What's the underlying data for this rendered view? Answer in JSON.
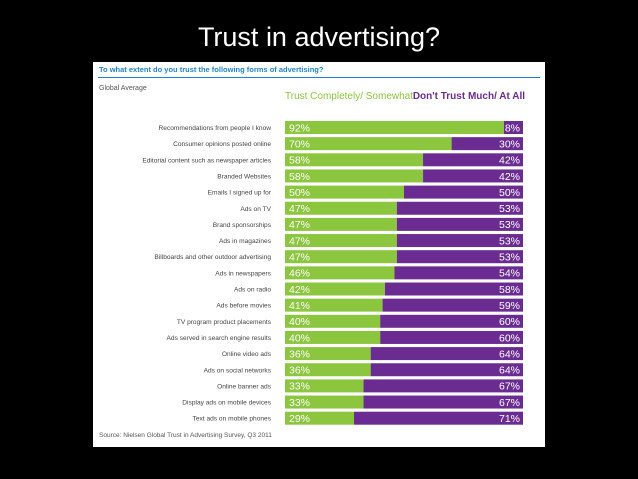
{
  "slide_title": "Trust in advertising?",
  "chart_data": {
    "type": "bar",
    "stacked": true,
    "orientation": "horizontal",
    "title": "To what extent do you trust the following forms of advertising?",
    "subtitle": "Global Average",
    "source": "Source: Nielsen Global Trust in Advertising Survey, Q3 2011",
    "categories": [
      "Recommendations from people I know",
      "Consumer opinions posted online",
      "Editorial content such as newspaper articles",
      "Branded Websites",
      "Emails I signed up for",
      "Ads on TV",
      "Brand sponsorships",
      "Ads in magazines",
      "Billboards and other outdoor advertising",
      "Ads in newspapers",
      "Ads on radio",
      "Ads before movies",
      "TV program product placements",
      "Ads served in search engine results",
      "Online video ads",
      "Ads on social networks",
      "Online banner ads",
      "Display ads on mobile devices",
      "Text ads on mobile phones"
    ],
    "series": [
      {
        "name": "Trust Completely/ Somewhat",
        "color": "#8cc63f",
        "values": [
          92,
          70,
          58,
          58,
          50,
          47,
          47,
          47,
          47,
          46,
          42,
          41,
          40,
          40,
          36,
          36,
          33,
          33,
          29
        ]
      },
      {
        "name": "Don't Trust Much/ At All",
        "color": "#6a2c91",
        "values": [
          8,
          30,
          42,
          42,
          50,
          53,
          53,
          53,
          53,
          54,
          58,
          59,
          60,
          60,
          64,
          64,
          67,
          67,
          71
        ]
      }
    ],
    "value_suffix": "%",
    "xlim": [
      0,
      100
    ]
  }
}
